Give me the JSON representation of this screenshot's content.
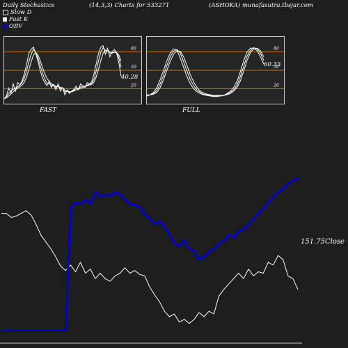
{
  "header": {
    "left": "Daily Stochastics",
    "middle": "(14,3,3) Charts for 533271",
    "right": "(ASHOKA) munafasutra.tbsjar.com"
  },
  "legend": [
    {
      "label": "Slow  D",
      "color": "#1e1e1e"
    },
    {
      "label": "Fast K",
      "color": "#ffffff"
    },
    {
      "label": "OBV",
      "color": "#0000cc"
    }
  ],
  "chart_data": [
    {
      "type": "line",
      "panel": "FAST",
      "ylim": [
        0,
        100
      ],
      "levels": [
        20,
        50,
        80
      ],
      "level_labels": [
        "80",
        "50",
        "20"
      ],
      "last_value_label": "40.28",
      "series": [
        {
          "values": [
            3,
            8,
            21,
            12,
            28,
            16,
            30,
            26,
            33,
            45,
            60,
            78,
            84,
            88,
            78,
            65,
            50,
            38,
            30,
            25,
            32,
            22,
            27,
            18,
            28,
            16,
            22,
            10,
            18,
            12,
            16,
            19,
            24,
            18,
            28,
            24,
            22,
            30,
            27,
            32,
            45,
            62,
            78,
            88,
            90,
            76,
            86,
            72,
            80,
            84,
            78,
            62,
            40
          ]
        },
        {
          "values": [
            4,
            6,
            12,
            16,
            19,
            21,
            23,
            26,
            30,
            38,
            50,
            64,
            76,
            84,
            80,
            70,
            58,
            46,
            36,
            29,
            28,
            26,
            25,
            22,
            24,
            20,
            21,
            15,
            16,
            14,
            15,
            17,
            20,
            20,
            23,
            24,
            24,
            26,
            27,
            29,
            36,
            50,
            66,
            80,
            87,
            82,
            82,
            78,
            78,
            80,
            80,
            70,
            55
          ]
        },
        {
          "values": [
            4,
            5,
            8,
            11,
            15,
            18,
            21,
            23,
            26,
            31,
            40,
            51,
            64,
            75,
            79,
            75,
            66,
            55,
            45,
            37,
            32,
            28,
            26,
            24,
            24,
            22,
            21,
            18,
            17,
            15,
            15,
            16,
            18,
            19,
            21,
            22,
            23,
            25,
            26,
            27,
            31,
            40,
            52,
            66,
            78,
            82,
            82,
            80,
            79,
            79,
            79,
            75,
            65
          ]
        }
      ]
    },
    {
      "type": "line",
      "panel": "FULL",
      "ylim": [
        0,
        100
      ],
      "levels": [
        20,
        50,
        80
      ],
      "level_labels": [
        "80",
        "50",
        "20"
      ],
      "last_value_label": "60.33",
      "series": [
        {
          "values": [
            8,
            10,
            14,
            22,
            35,
            50,
            66,
            78,
            85,
            83,
            70,
            55,
            40,
            28,
            20,
            15,
            12,
            10,
            9,
            8,
            7,
            7,
            8,
            9,
            12,
            16,
            22,
            32,
            48,
            66,
            80,
            86,
            86,
            82,
            72,
            60
          ]
        },
        {
          "values": [
            9,
            10,
            12,
            17,
            28,
            42,
            58,
            72,
            81,
            84,
            78,
            64,
            49,
            35,
            25,
            18,
            14,
            11,
            10,
            9,
            8,
            8,
            8,
            9,
            11,
            14,
            18,
            26,
            40,
            57,
            73,
            83,
            87,
            85,
            78,
            66
          ]
        },
        {
          "values": [
            10,
            10,
            11,
            14,
            22,
            35,
            50,
            65,
            76,
            82,
            81,
            72,
            58,
            43,
            31,
            22,
            16,
            13,
            11,
            10,
            9,
            9,
            9,
            9,
            10,
            12,
            16,
            22,
            33,
            49,
            66,
            79,
            85,
            86,
            82,
            72
          ]
        }
      ]
    },
    {
      "type": "line",
      "panel": "price-obv",
      "close_label": "151.75Close",
      "series": [
        {
          "name": "Close",
          "color": "#ffffff",
          "values": [
            96,
            96,
            93,
            94,
            96,
            98,
            95,
            88,
            80,
            75,
            70,
            64,
            57,
            54,
            58,
            53,
            60,
            52,
            55,
            48,
            52,
            48,
            46,
            50,
            52,
            56,
            52,
            54,
            51,
            50,
            42,
            36,
            31,
            24,
            20,
            22,
            16,
            18,
            15,
            18,
            23,
            20,
            24,
            22,
            35,
            40,
            44,
            48,
            52,
            48,
            55,
            50,
            53,
            52,
            60,
            58,
            65,
            62,
            50,
            48,
            40
          ]
        },
        {
          "name": "OBV",
          "color": "#0000cc",
          "values": [
            10,
            10,
            10,
            10,
            10,
            10,
            10,
            10,
            10,
            10,
            10,
            10,
            10,
            10,
            100,
            104,
            103,
            106,
            103,
            112,
            108,
            110,
            109,
            111,
            110,
            106,
            103,
            102,
            100,
            95,
            92,
            88,
            90,
            86,
            80,
            74,
            72,
            76,
            70,
            68,
            62,
            64,
            68,
            70,
            74,
            76,
            80,
            78,
            83,
            84,
            88,
            92,
            96,
            100,
            104,
            108,
            112,
            114,
            118,
            120,
            122
          ]
        }
      ]
    }
  ]
}
